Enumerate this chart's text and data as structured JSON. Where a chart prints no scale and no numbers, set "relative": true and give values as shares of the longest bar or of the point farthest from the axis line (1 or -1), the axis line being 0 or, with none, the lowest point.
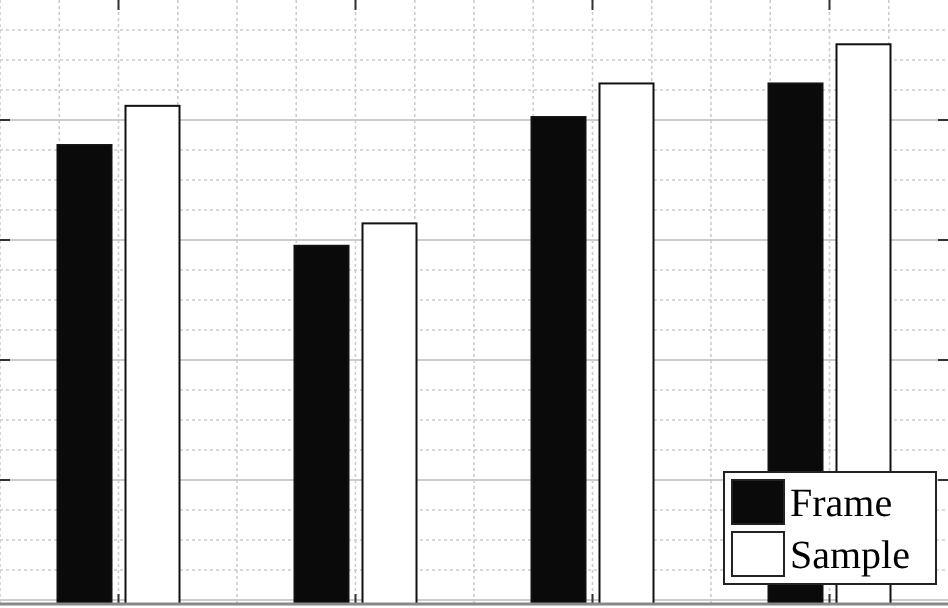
{
  "chart_data": {
    "type": "bar",
    "relative": true,
    "categories": [
      null,
      null,
      null,
      null
    ],
    "series": [
      {
        "name": "Frame",
        "color": "#0a0a0a",
        "values": [
          0.82,
          0.64,
          0.87,
          0.93
        ]
      },
      {
        "name": "Sample",
        "color": "#ffffff",
        "values": [
          0.89,
          0.68,
          0.93,
          1
        ]
      }
    ],
    "grid": true,
    "legend": "bottom right"
  }
}
